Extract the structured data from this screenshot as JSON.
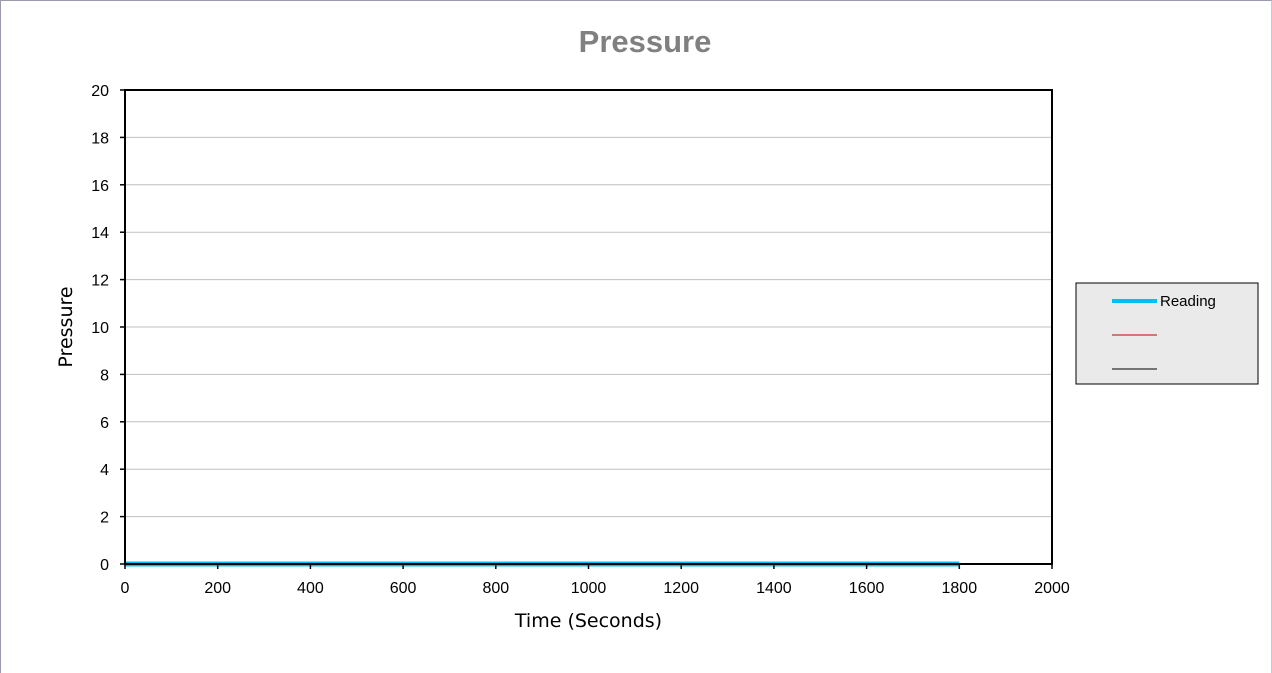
{
  "chart_data": {
    "type": "line",
    "title": "Pressure",
    "xlabel": "Time (Seconds)",
    "ylabel": "Pressure",
    "xlim": [
      0,
      2000
    ],
    "ylim": [
      0,
      20
    ],
    "x_ticks": [
      0,
      200,
      400,
      600,
      800,
      1000,
      1200,
      1400,
      1600,
      1800,
      2000
    ],
    "y_ticks": [
      0,
      2,
      4,
      6,
      8,
      10,
      12,
      14,
      16,
      18,
      20
    ],
    "grid": "horizontal",
    "legend_position": "right",
    "series": [
      {
        "name": "Reading",
        "color": "#00c0f0",
        "x": [
          0,
          1800
        ],
        "y": [
          0,
          0
        ]
      },
      {
        "name": "",
        "color": "#c00000",
        "x": [],
        "y": []
      },
      {
        "name": "",
        "color": "#000000",
        "x": [
          1800,
          2000
        ],
        "y": [
          0,
          0
        ]
      }
    ]
  }
}
